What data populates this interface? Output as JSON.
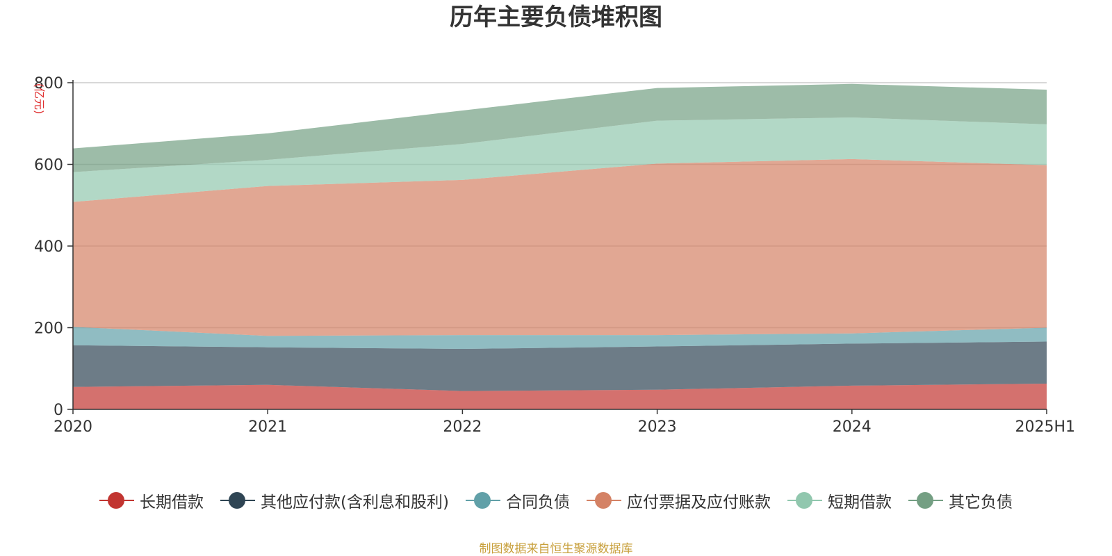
{
  "chart_data": {
    "type": "area",
    "stacked": true,
    "title": "历年主要负债堆积图",
    "ylabel": "(亿元)",
    "xlabel": "",
    "categories": [
      "2020",
      "2021",
      "2022",
      "2023",
      "2024",
      "2025H1"
    ],
    "ylim": [
      0,
      800
    ],
    "yticks": [
      0,
      200,
      400,
      600,
      800
    ],
    "grid": true,
    "legend_position": "bottom",
    "series": [
      {
        "name": "长期借款",
        "color": "#c23531",
        "values": [
          55,
          60,
          45,
          48,
          58,
          63
        ]
      },
      {
        "name": "其他应付款(含利息和股利)",
        "color": "#2f4554",
        "values": [
          102,
          92,
          103,
          106,
          103,
          103
        ]
      },
      {
        "name": "合同负债",
        "color": "#61a0a8",
        "values": [
          45,
          28,
          34,
          28,
          25,
          34
        ]
      },
      {
        "name": "应付票据及应付账款",
        "color": "#d48265",
        "values": [
          306,
          367,
          380,
          420,
          427,
          398
        ]
      },
      {
        "name": "短期借款",
        "color": "#91c7ae",
        "values": [
          73,
          64,
          88,
          105,
          102,
          100
        ]
      },
      {
        "name": "其它负债",
        "color": "#749f83",
        "values": [
          58,
          65,
          82,
          80,
          82,
          85
        ]
      }
    ]
  },
  "footer": {
    "source": "制图数据来自恒生聚源数据库"
  }
}
